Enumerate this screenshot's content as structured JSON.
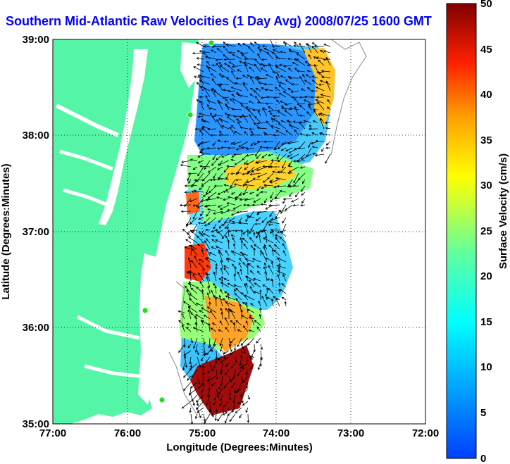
{
  "title": "Southern Mid-Atlantic Raw Velocities (1 Day Avg) 2008/07/25 1600 GMT",
  "x_axis": {
    "label": "Longitude (Degrees:Minutes)",
    "ticks": [
      "77:00",
      "76:00",
      "75:00",
      "74:00",
      "73:00",
      "72:00"
    ],
    "range": [
      -77,
      -72
    ]
  },
  "y_axis": {
    "label": "Latitude (Degrees:Minutes)",
    "ticks": [
      "39:00",
      "38:00",
      "37:00",
      "36:00",
      "35:00"
    ],
    "range": [
      35,
      39
    ]
  },
  "colorbar": {
    "label": "Surface Velocity (cm/s)",
    "ticks": [
      "50",
      "45",
      "40",
      "35",
      "30",
      "25",
      "20",
      "15",
      "10",
      "5",
      "0"
    ],
    "range": [
      0,
      50
    ],
    "colormap": "jet"
  },
  "colors": {
    "land": "#55f5a8",
    "water": "#ffffff",
    "title": "#0000ff",
    "station": "#22dd22"
  },
  "grid": "dotted",
  "vector_color": "#000000"
}
